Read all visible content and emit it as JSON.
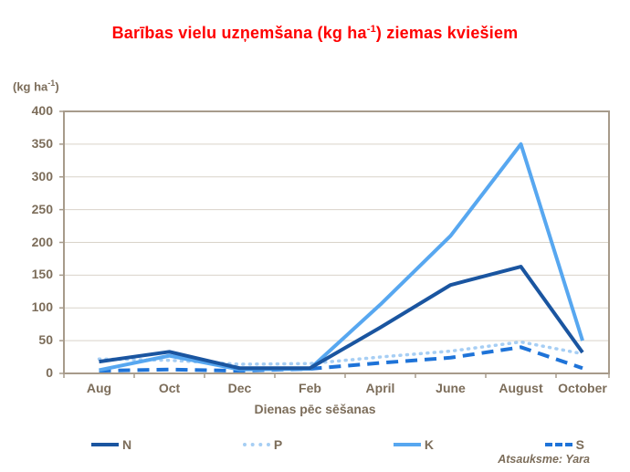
{
  "title": {
    "prefix": "Barības vielu uzņemšana (kg ha",
    "sup": "-1",
    "suffix": ") ziemas kviešiem",
    "color": "#ff0000"
  },
  "y_axis_unit": {
    "prefix": "(kg ha",
    "sup": "-1",
    "suffix": ")"
  },
  "x_axis_title": "Dienas pēc sēšanas",
  "attribution": "Atsauksme: Yara",
  "colors": {
    "text_brown": "#7c6d5a",
    "grid": "#d9d3c9",
    "plot_border": "#a79b8b",
    "background": "#ffffff",
    "series_n": "#1a55a0",
    "series_p": "#a6cef4",
    "series_k": "#57a7f0",
    "series_s": "#1e73d8"
  },
  "chart_data": {
    "type": "line",
    "categories": [
      "Aug",
      "Oct",
      "Dec",
      "Feb",
      "April",
      "June",
      "August",
      "October"
    ],
    "series": [
      {
        "name": "N",
        "values": [
          18,
          33,
          8,
          8,
          70,
          135,
          163,
          32
        ],
        "color": "#1a55a0",
        "style": "solid"
      },
      {
        "name": "P",
        "values": [
          22,
          20,
          14,
          15,
          25,
          34,
          48,
          30
        ],
        "color": "#a6cef4",
        "style": "dotted"
      },
      {
        "name": "K",
        "values": [
          5,
          27,
          6,
          7,
          105,
          210,
          350,
          50
        ],
        "color": "#57a7f0",
        "style": "solid"
      },
      {
        "name": "S",
        "values": [
          4,
          6,
          4,
          7,
          16,
          24,
          40,
          8
        ],
        "color": "#1e73d8",
        "style": "dashed"
      }
    ],
    "ylabel": "(kg ha-1)",
    "xlabel": "Dienas pēc sēšanas",
    "ylim": [
      0,
      400
    ],
    "ytick_step": 50,
    "grid": true,
    "legend_position": "bottom",
    "legend_order": [
      "N",
      "P",
      "K",
      "S"
    ]
  }
}
